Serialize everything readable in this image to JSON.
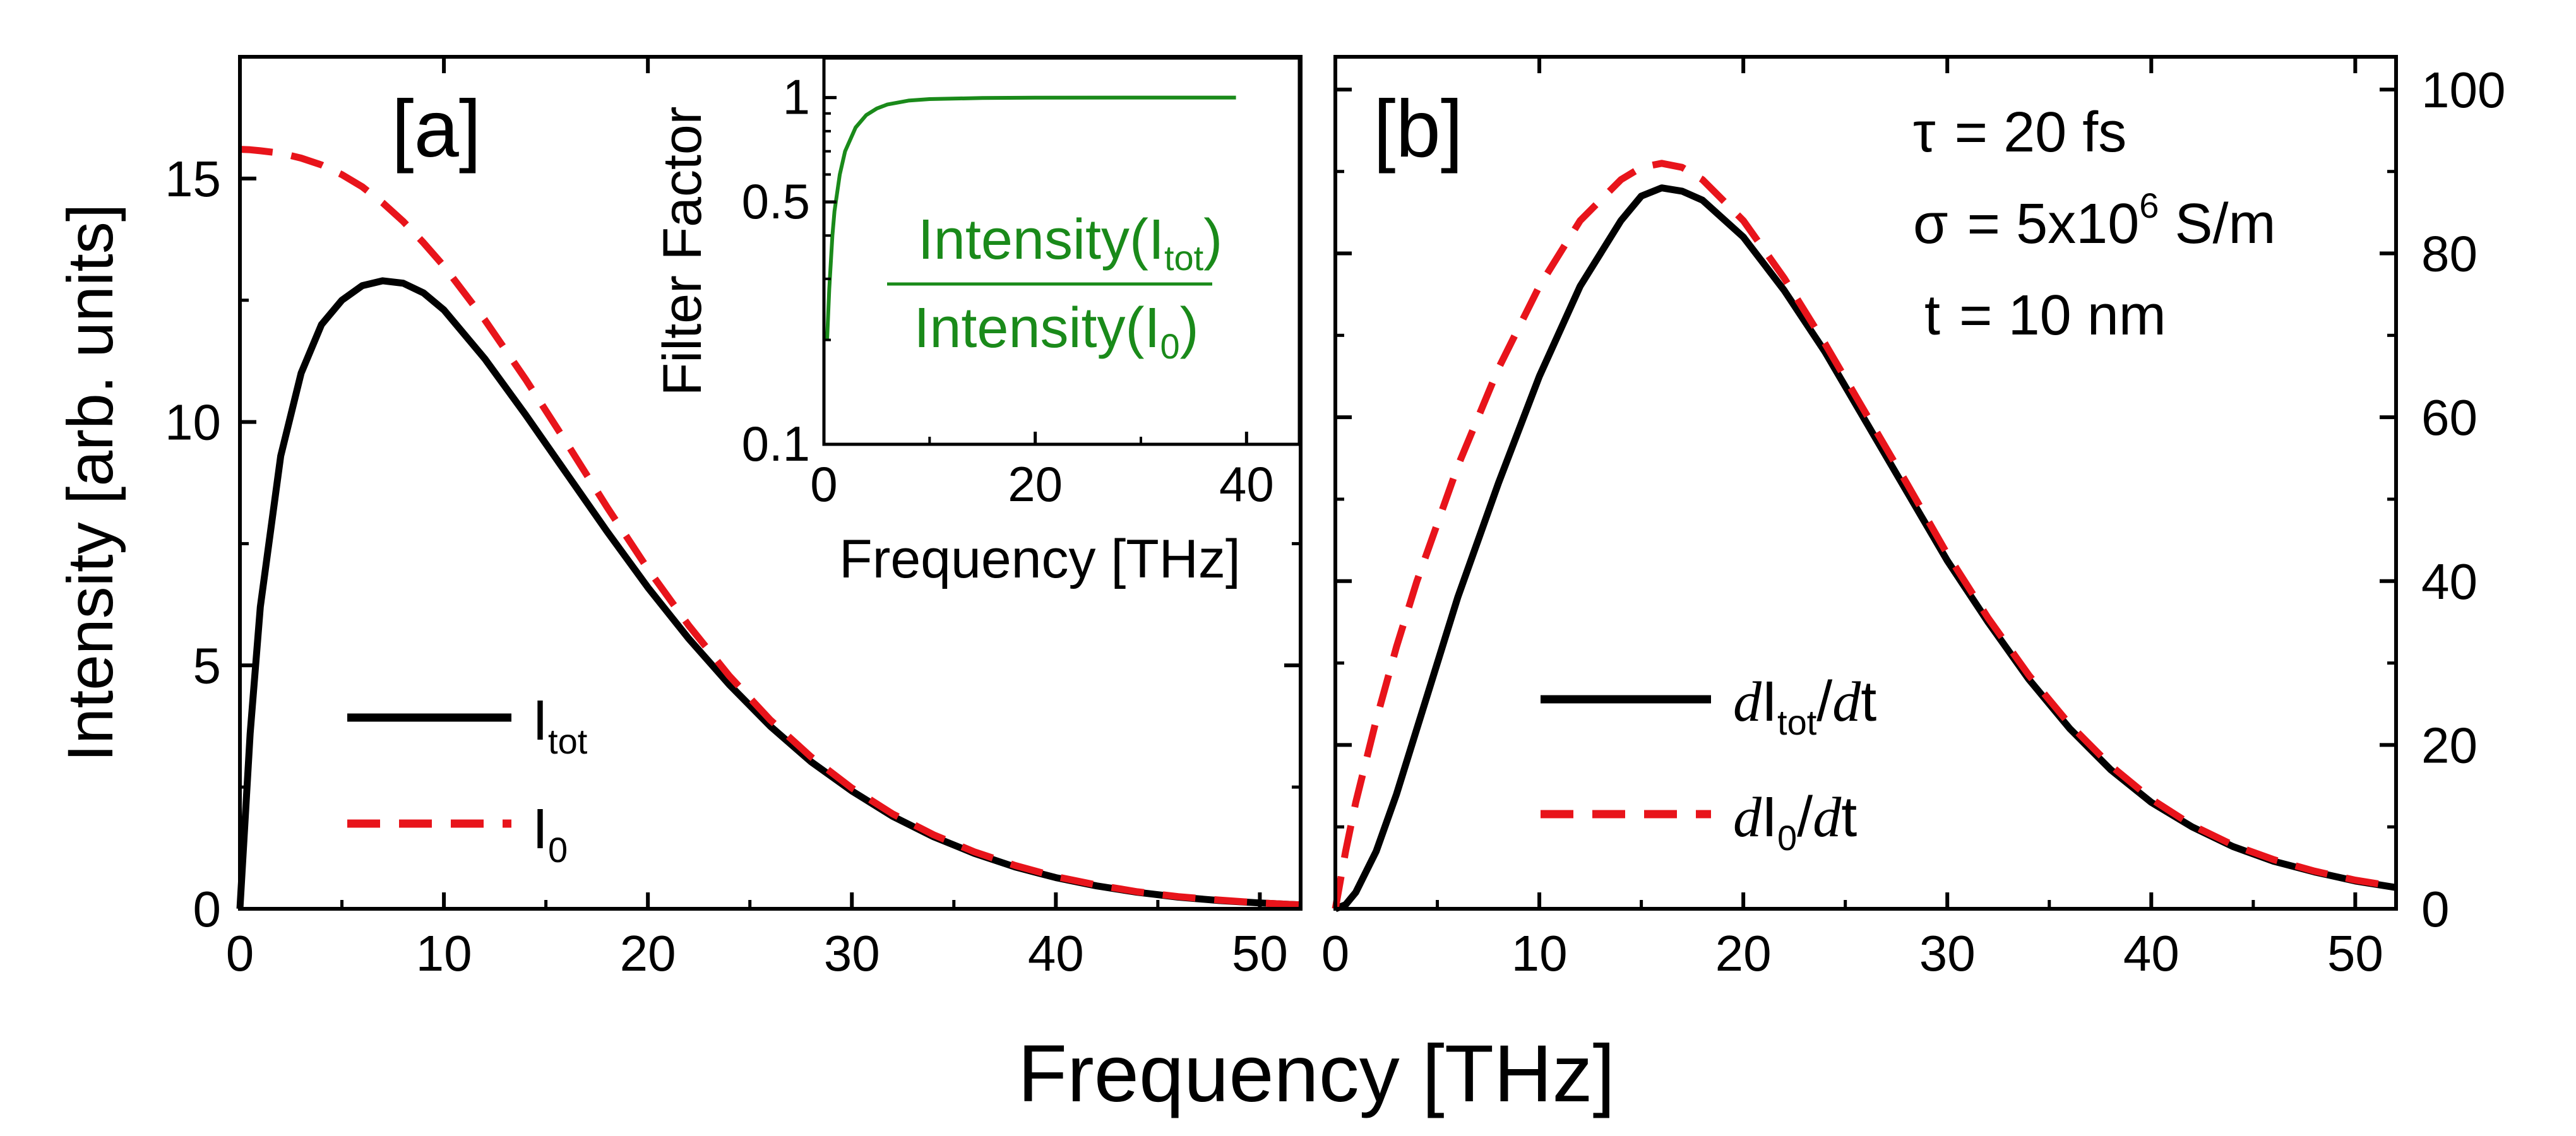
{
  "figure": {
    "xlabel": "Frequency [THz]",
    "colors": {
      "black": "#000000",
      "red": "#e8141b",
      "green": "#1a8a1a"
    }
  },
  "chart_data": [
    {
      "type": "line",
      "panel_label": "[a]",
      "ylabel": "Intensity [arb. units]",
      "xlabel": "Frequency [THz]",
      "xlim": [
        0,
        52
      ],
      "ylim": [
        0,
        17.5
      ],
      "xticks": [
        0,
        10,
        20,
        30,
        40,
        50
      ],
      "yticks": [
        0,
        5,
        10,
        15
      ],
      "x": [
        0,
        0.5,
        1,
        2,
        3,
        4,
        5,
        6,
        7,
        8,
        9,
        10,
        12,
        14,
        16,
        18,
        20,
        22,
        24,
        26,
        28,
        30,
        32,
        34,
        36,
        38,
        40,
        42,
        44,
        46,
        48,
        50,
        52
      ],
      "series": [
        {
          "name": "I_tot",
          "legend_main": "I",
          "legend_sub": "tot",
          "style": "solid",
          "color": "#000000",
          "values": [
            0,
            3.6,
            6.2,
            9.3,
            11.0,
            12.0,
            12.5,
            12.8,
            12.9,
            12.85,
            12.65,
            12.3,
            11.3,
            10.15,
            8.95,
            7.75,
            6.6,
            5.55,
            4.6,
            3.75,
            3.02,
            2.42,
            1.9,
            1.48,
            1.14,
            0.86,
            0.64,
            0.47,
            0.34,
            0.24,
            0.17,
            0.12,
            0.08
          ]
        },
        {
          "name": "I_0",
          "legend_main": "I",
          "legend_sub": "0",
          "style": "dashed",
          "color": "#e8141b",
          "values": [
            15.6,
            15.59,
            15.57,
            15.52,
            15.42,
            15.28,
            15.08,
            14.83,
            14.5,
            14.12,
            13.68,
            13.2,
            12.1,
            10.88,
            9.58,
            8.25,
            6.98,
            5.82,
            4.78,
            3.88,
            3.12,
            2.48,
            1.95,
            1.52,
            1.17,
            0.89,
            0.66,
            0.49,
            0.35,
            0.25,
            0.18,
            0.12,
            0.08
          ]
        }
      ],
      "inset": {
        "type": "line",
        "ylabel": "Filter Factor",
        "xlabel": "Frequency [THz]",
        "xlim": [
          0,
          45
        ],
        "ylim": [
          0.1,
          1.3
        ],
        "yscale": "log",
        "xticks": [
          0,
          20,
          40
        ],
        "yticks": [
          0.1,
          0.5,
          1
        ],
        "ytick_labels": [
          "0.1",
          "0.5",
          "1"
        ],
        "annotation_numerator": "Intensity(I",
        "annotation_numerator_sub": "tot",
        "annotation_denominator": "Intensity(I",
        "annotation_denominator_sub": "0",
        "annotation_close": ")",
        "series": [
          {
            "name": "Filter Factor",
            "color": "#1a8a1a",
            "x": [
              0.3,
              0.5,
              0.8,
              1.0,
              1.5,
              2,
              3,
              4,
              5,
              6,
              8,
              10,
              15,
              20,
              30,
              39
            ],
            "values": [
              0.2,
              0.28,
              0.4,
              0.47,
              0.6,
              0.7,
              0.82,
              0.89,
              0.93,
              0.955,
              0.98,
              0.99,
              0.997,
              0.999,
              1.0,
              1.0
            ]
          }
        ]
      }
    },
    {
      "type": "line",
      "panel_label": "[b]",
      "xlabel": "Frequency [THz]",
      "xlim": [
        0,
        52
      ],
      "ylim": [
        0,
        104
      ],
      "xticks": [
        0,
        10,
        20,
        30,
        40,
        50
      ],
      "yticks": [
        0,
        20,
        40,
        60,
        80,
        100
      ],
      "y_axis_side": "right",
      "annotations": {
        "tau": {
          "symbol": "τ",
          "text": "= 20 fs"
        },
        "sigma": {
          "symbol": "σ",
          "text": "= 5x10",
          "sup": "6",
          "unit": " S/m"
        },
        "thickness": {
          "symbol": "t",
          "text": "= 10 nm"
        }
      },
      "x": [
        0,
        0.5,
        1,
        2,
        3,
        4,
        5,
        6,
        8,
        10,
        12,
        14,
        15,
        16,
        17,
        18,
        20,
        22,
        24,
        26,
        28,
        30,
        32,
        34,
        36,
        38,
        40,
        42,
        44,
        46,
        48,
        50,
        52
      ],
      "series": [
        {
          "name": "dI_tot/dt",
          "legend_d1": "d",
          "legend_main": "I",
          "legend_sub": "tot",
          "legend_tail": "/",
          "legend_d2": "d",
          "legend_t": "t",
          "style": "solid",
          "color": "#000000",
          "values": [
            0,
            0.5,
            2,
            7,
            14,
            22,
            30,
            38,
            52,
            65,
            76,
            84,
            87,
            88,
            87.6,
            86.5,
            82,
            75.5,
            68,
            59.5,
            51,
            42.5,
            35,
            28,
            22,
            17,
            13,
            10,
            7.6,
            5.8,
            4.5,
            3.4,
            2.6
          ]
        },
        {
          "name": "dI_0/dt",
          "legend_d1": "d",
          "legend_main": "I",
          "legend_sub": "0",
          "legend_tail": "/",
          "legend_d2": "d",
          "legend_t": "t",
          "style": "dashed",
          "color": "#e8141b",
          "values": [
            0,
            7,
            13,
            23,
            32,
            40,
            47,
            54,
            66,
            76,
            84,
            89,
            90.5,
            91,
            90.5,
            89,
            84,
            77,
            69,
            60.5,
            52,
            43.3,
            35.5,
            28.5,
            22.5,
            17.5,
            13.4,
            10.2,
            7.8,
            6,
            4.6,
            3.5,
            2.7
          ]
        }
      ]
    }
  ]
}
